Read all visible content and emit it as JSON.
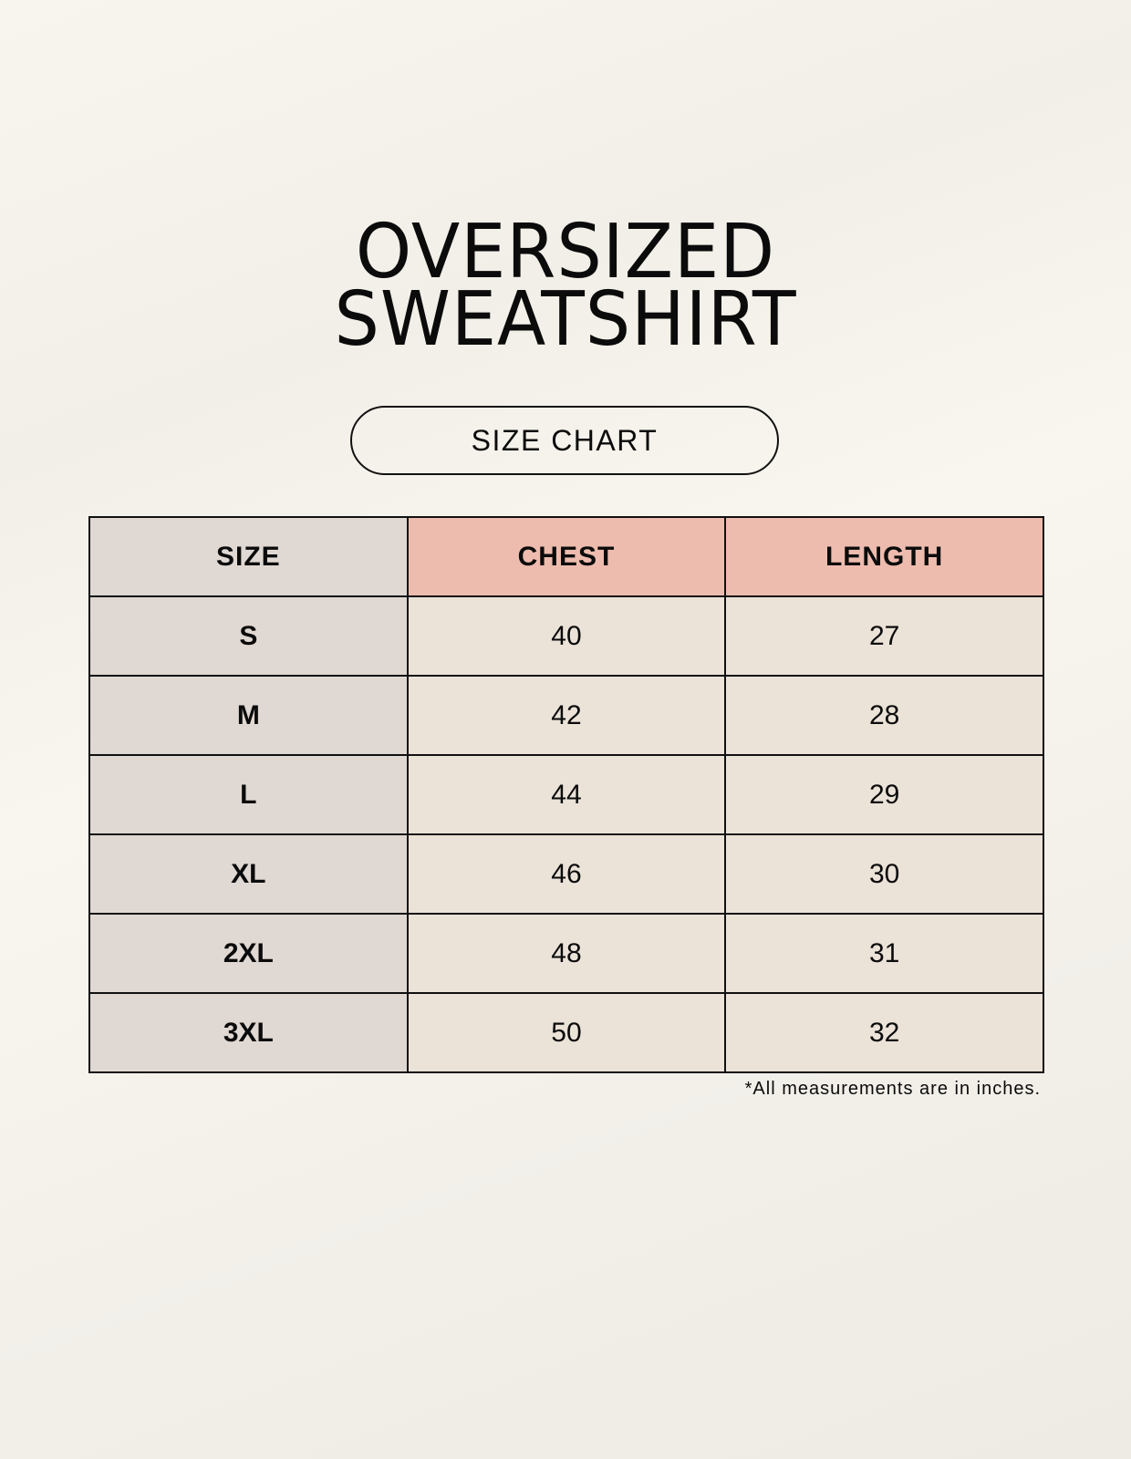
{
  "title": {
    "line1": "OVERSIZED",
    "line2": "SWEATSHIRT"
  },
  "badge": "SIZE CHART",
  "table": {
    "headers": [
      "SIZE",
      "CHEST",
      "LENGTH"
    ],
    "rows": [
      [
        "S",
        "40",
        "27"
      ],
      [
        "M",
        "42",
        "28"
      ],
      [
        "L",
        "44",
        "29"
      ],
      [
        "XL",
        "46",
        "30"
      ],
      [
        "2XL",
        "48",
        "31"
      ],
      [
        "3XL",
        "50",
        "32"
      ]
    ]
  },
  "footnote": "*All measurements are in inches.",
  "colors": {
    "size_column": "#e0d8d2",
    "header_accent": "#edbcae",
    "value_cells": "#ebe2d8"
  }
}
